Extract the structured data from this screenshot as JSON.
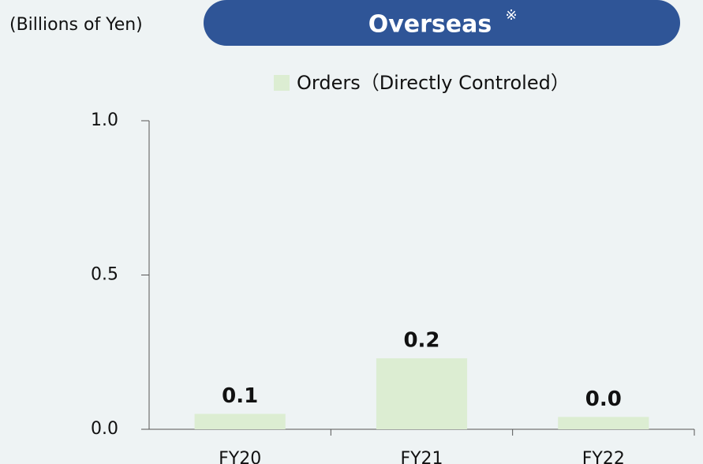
{
  "chart_data": {
    "type": "bar",
    "unit_label": "(Billions of Yen)",
    "title": "Overseas",
    "title_mark": "※",
    "categories": [
      "FY20",
      "FY21",
      "FY22"
    ],
    "series": [
      {
        "name": "Orders（Directly Controled）",
        "color": "#dcedd2",
        "values": [
          0.05,
          0.23,
          0.04
        ],
        "value_labels": [
          "0.1",
          "0.2",
          "0.0"
        ]
      }
    ],
    "ylim": [
      0,
      1
    ],
    "yticks": [
      {
        "value": 0,
        "label": "0.0"
      },
      {
        "value": 0.5,
        "label": "0.5"
      },
      {
        "value": 1,
        "label": "1.0"
      }
    ],
    "grid": false
  }
}
